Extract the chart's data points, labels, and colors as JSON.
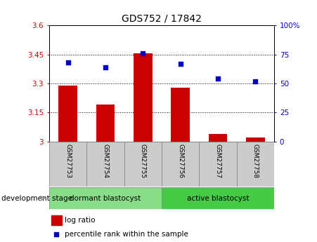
{
  "title": "GDS752 / 17842",
  "samples": [
    "GSM27753",
    "GSM27754",
    "GSM27755",
    "GSM27756",
    "GSM27757",
    "GSM27758"
  ],
  "log_ratio": [
    3.29,
    3.19,
    3.455,
    3.28,
    3.04,
    3.02
  ],
  "percentile": [
    68,
    64,
    76,
    67,
    54,
    52
  ],
  "log_ratio_base": 3.0,
  "ylim_left": [
    3.0,
    3.6
  ],
  "ylim_right": [
    0,
    100
  ],
  "yticks_left": [
    3.0,
    3.15,
    3.3,
    3.45,
    3.6
  ],
  "ytick_labels_left": [
    "3",
    "3.15",
    "3.3",
    "3.45",
    "3.6"
  ],
  "yticks_right": [
    0,
    25,
    50,
    75,
    100
  ],
  "ytick_labels_right": [
    "0",
    "25",
    "50",
    "75",
    "100%"
  ],
  "hlines": [
    3.45,
    3.3,
    3.15
  ],
  "bar_color": "#cc0000",
  "scatter_color": "#0000cc",
  "bar_width": 0.5,
  "groups": [
    {
      "label": "dormant blastocyst",
      "color": "#88dd88"
    },
    {
      "label": "active blastocyst",
      "color": "#44cc44"
    }
  ],
  "group_label": "development stage",
  "legend_items": [
    {
      "label": "log ratio",
      "color": "#cc0000"
    },
    {
      "label": "percentile rank within the sample",
      "color": "#0000cc"
    }
  ],
  "tick_label_color_left": "#cc0000",
  "tick_label_color_right": "#0000cc",
  "bg_plot": "#ffffff",
  "bg_xticklabel": "#cccccc",
  "scatter_size": 25,
  "title_fontsize": 10
}
